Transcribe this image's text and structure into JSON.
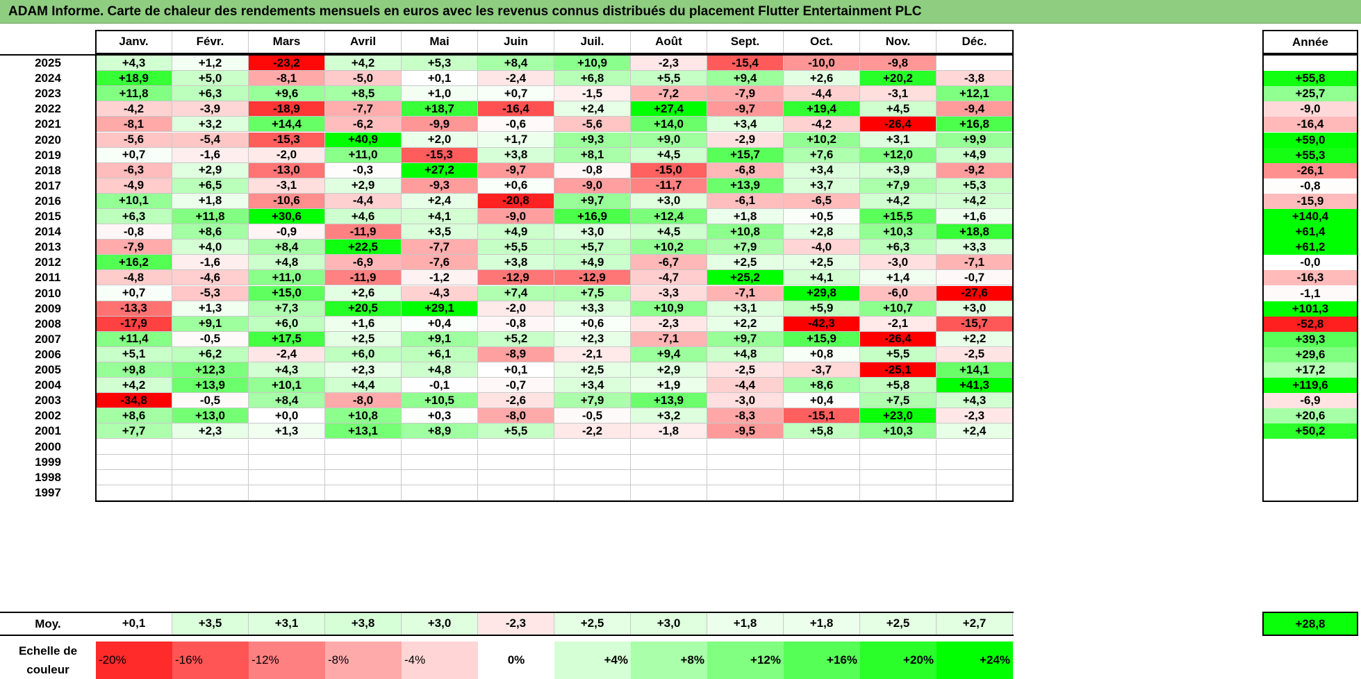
{
  "title": "ADAM Informe. Carte de chaleur des rendements mensuels en euros avec les revenus connus distribués du placement Flutter Entertainment PLC",
  "chart_data": {
    "type": "heatmap",
    "months": [
      "Janv.",
      "Févr.",
      "Mars",
      "Avril",
      "Mai",
      "Juin",
      "Juil.",
      "Août",
      "Sept.",
      "Oct.",
      "Nov.",
      "Déc."
    ],
    "year_header": "Année",
    "rows": [
      {
        "year": "2025",
        "values": [
          "+4,3",
          "+1,2",
          "-23,2",
          "+4,2",
          "+5,3",
          "+8,4",
          "+10,9",
          "-2,3",
          "-15,4",
          "-10,0",
          "-9,8",
          ""
        ],
        "annual": ""
      },
      {
        "year": "2024",
        "values": [
          "+18,9",
          "+5,0",
          "-8,1",
          "-5,0",
          "+0,1",
          "-2,4",
          "+6,8",
          "+5,5",
          "+9,4",
          "+2,6",
          "+20,2",
          "-3,8"
        ],
        "annual": "+55,8"
      },
      {
        "year": "2023",
        "values": [
          "+11,8",
          "+6,3",
          "+9,6",
          "+8,5",
          "+1,0",
          "+0,7",
          "-1,5",
          "-7,2",
          "-7,9",
          "-4,4",
          "-3,1",
          "+12,1"
        ],
        "annual": "+25,7"
      },
      {
        "year": "2022",
        "values": [
          "-4,2",
          "-3,9",
          "-18,9",
          "-7,7",
          "+18,7",
          "-16,4",
          "+2,4",
          "+27,4",
          "-9,7",
          "+19,4",
          "+4,5",
          "-9,4"
        ],
        "annual": "-9,0"
      },
      {
        "year": "2021",
        "values": [
          "-8,1",
          "+3,2",
          "+14,4",
          "-6,2",
          "-9,9",
          "-0,6",
          "-5,6",
          "+14,0",
          "+3,4",
          "-4,2",
          "-26,4",
          "+16,8"
        ],
        "annual": "-16,4"
      },
      {
        "year": "2020",
        "values": [
          "-5,6",
          "-5,4",
          "-15,3",
          "+40,9",
          "+2,0",
          "+1,7",
          "+9,3",
          "+9,0",
          "-2,9",
          "+10,2",
          "+3,1",
          "+9,9"
        ],
        "annual": "+59,0"
      },
      {
        "year": "2019",
        "values": [
          "+0,7",
          "-1,6",
          "-2,0",
          "+11,0",
          "-15,3",
          "+3,8",
          "+8,1",
          "+4,5",
          "+15,7",
          "+7,6",
          "+12,0",
          "+4,9"
        ],
        "annual": "+55,3"
      },
      {
        "year": "2018",
        "values": [
          "-6,3",
          "+2,9",
          "-13,0",
          "-0,3",
          "+27,2",
          "-9,7",
          "-0,8",
          "-15,0",
          "-6,8",
          "+3,4",
          "+3,9",
          "-9,2"
        ],
        "annual": "-26,1"
      },
      {
        "year": "2017",
        "values": [
          "-4,9",
          "+6,5",
          "-3,1",
          "+2,9",
          "-9,3",
          "+0,6",
          "-9,0",
          "-11,7",
          "+13,9",
          "+3,7",
          "+7,9",
          "+5,3"
        ],
        "annual": "-0,8"
      },
      {
        "year": "2016",
        "values": [
          "+10,1",
          "+1,8",
          "-10,6",
          "-4,4",
          "+2,4",
          "-20,8",
          "+9,7",
          "+3,0",
          "-6,1",
          "-6,5",
          "+4,2",
          "+4,2"
        ],
        "annual": "-15,9"
      },
      {
        "year": "2015",
        "values": [
          "+6,3",
          "+11,8",
          "+30,6",
          "+4,6",
          "+4,1",
          "-9,0",
          "+16,9",
          "+12,4",
          "+1,8",
          "+0,5",
          "+15,5",
          "+1,6"
        ],
        "annual": "+140,4"
      },
      {
        "year": "2014",
        "values": [
          "-0,8",
          "+8,6",
          "-0,9",
          "-11,9",
          "+3,5",
          "+4,9",
          "+3,0",
          "+4,5",
          "+10,8",
          "+2,8",
          "+10,3",
          "+18,8"
        ],
        "annual": "+61,4"
      },
      {
        "year": "2013",
        "values": [
          "-7,9",
          "+4,0",
          "+8,4",
          "+22,5",
          "-7,7",
          "+5,5",
          "+5,7",
          "+10,2",
          "+7,9",
          "-4,0",
          "+6,3",
          "+3,3"
        ],
        "annual": "+61,2"
      },
      {
        "year": "2012",
        "values": [
          "+16,2",
          "-1,6",
          "+4,8",
          "-6,9",
          "-7,6",
          "+3,8",
          "+4,9",
          "-6,7",
          "+2,5",
          "+2,5",
          "-3,0",
          "-7,1"
        ],
        "annual": "-0,0"
      },
      {
        "year": "2011",
        "values": [
          "-4,8",
          "-4,6",
          "+11,0",
          "-11,9",
          "-1,2",
          "-12,9",
          "-12,9",
          "-4,7",
          "+25,2",
          "+4,1",
          "+1,4",
          "-0,7"
        ],
        "annual": "-16,3"
      },
      {
        "year": "2010",
        "values": [
          "+0,7",
          "-5,3",
          "+15,0",
          "+2,6",
          "-4,3",
          "+7,4",
          "+7,5",
          "-3,3",
          "-7,1",
          "+29,8",
          "-6,0",
          "-27,6"
        ],
        "annual": "-1,1"
      },
      {
        "year": "2009",
        "values": [
          "-13,3",
          "+1,3",
          "+7,3",
          "+20,5",
          "+29,1",
          "-2,0",
          "+3,3",
          "+10,9",
          "+3,1",
          "+5,9",
          "+10,7",
          "+3,0"
        ],
        "annual": "+101,3"
      },
      {
        "year": "2008",
        "values": [
          "-17,9",
          "+9,1",
          "+6,0",
          "+1,6",
          "+0,4",
          "-0,8",
          "+0,6",
          "-2,3",
          "+2,2",
          "-42,3",
          "-2,1",
          "-15,7"
        ],
        "annual": "-52,8"
      },
      {
        "year": "2007",
        "values": [
          "+11,4",
          "-0,5",
          "+17,5",
          "+2,5",
          "+9,1",
          "+5,2",
          "+2,3",
          "-7,1",
          "+9,7",
          "+15,9",
          "-26,4",
          "+2,2"
        ],
        "annual": "+39,3"
      },
      {
        "year": "2006",
        "values": [
          "+5,1",
          "+6,2",
          "-2,4",
          "+6,0",
          "+6,1",
          "-8,9",
          "-2,1",
          "+9,4",
          "+4,8",
          "+0,8",
          "+5,5",
          "-2,5"
        ],
        "annual": "+29,6"
      },
      {
        "year": "2005",
        "values": [
          "+9,8",
          "+12,3",
          "+4,3",
          "+2,3",
          "+4,8",
          "+0,1",
          "+2,5",
          "+2,9",
          "-2,5",
          "-3,7",
          "-25,1",
          "+14,1"
        ],
        "annual": "+17,2"
      },
      {
        "year": "2004",
        "values": [
          "+4,2",
          "+13,9",
          "+10,1",
          "+4,4",
          "-0,1",
          "-0,7",
          "+3,4",
          "+1,9",
          "-4,4",
          "+8,6",
          "+5,8",
          "+41,3"
        ],
        "annual": "+119,6"
      },
      {
        "year": "2003",
        "values": [
          "-34,8",
          "-0,5",
          "+8,4",
          "-8,0",
          "+10,5",
          "-2,6",
          "+7,9",
          "+13,9",
          "-3,0",
          "+0,4",
          "+7,5",
          "+4,3"
        ],
        "annual": "-6,9"
      },
      {
        "year": "2002",
        "values": [
          "+8,6",
          "+13,0",
          "+0,0",
          "+10,8",
          "+0,3",
          "-8,0",
          "-0,5",
          "+3,2",
          "-8,3",
          "-15,1",
          "+23,0",
          "-2,3"
        ],
        "annual": "+20,6"
      },
      {
        "year": "2001",
        "values": [
          "+7,7",
          "+2,3",
          "+1,3",
          "+13,1",
          "+8,9",
          "+5,5",
          "-2,2",
          "-1,8",
          "-9,5",
          "+5,8",
          "+10,3",
          "+2,4"
        ],
        "annual": "+50,2"
      },
      {
        "year": "2000",
        "values": [
          "",
          "",
          "",
          "",
          "",
          "",
          "",
          "",
          "",
          "",
          "",
          ""
        ],
        "annual": ""
      },
      {
        "year": "1999",
        "values": [
          "",
          "",
          "",
          "",
          "",
          "",
          "",
          "",
          "",
          "",
          "",
          ""
        ],
        "annual": ""
      },
      {
        "year": "1998",
        "values": [
          "",
          "",
          "",
          "",
          "",
          "",
          "",
          "",
          "",
          "",
          "",
          ""
        ],
        "annual": ""
      },
      {
        "year": "1997",
        "values": [
          "",
          "",
          "",
          "",
          "",
          "",
          "",
          "",
          "",
          "",
          "",
          ""
        ],
        "annual": ""
      }
    ],
    "average": {
      "label": "Moy.",
      "values": [
        "+0,1",
        "+3,5",
        "+3,1",
        "+3,8",
        "+3,0",
        "-2,3",
        "+2,5",
        "+3,0",
        "+1,8",
        "+1,8",
        "+2,5",
        "+2,7"
      ],
      "annual": "+28,8"
    },
    "legend": {
      "label": "Echelle de couleur",
      "steps": [
        "-20%",
        "-16%",
        "-12%",
        "-8%",
        "-4%",
        "0%",
        "+4%",
        "+8%",
        "+12%",
        "+16%",
        "+20%",
        "+24%"
      ],
      "step_values": [
        -20,
        -16,
        -12,
        -8,
        -4,
        0,
        4,
        8,
        12,
        16,
        20,
        24
      ]
    },
    "colors": {
      "negative": "#ff0000",
      "neutral": "#ffffff",
      "positive": "#00ff00",
      "title_bg": "#8fcd81"
    }
  }
}
